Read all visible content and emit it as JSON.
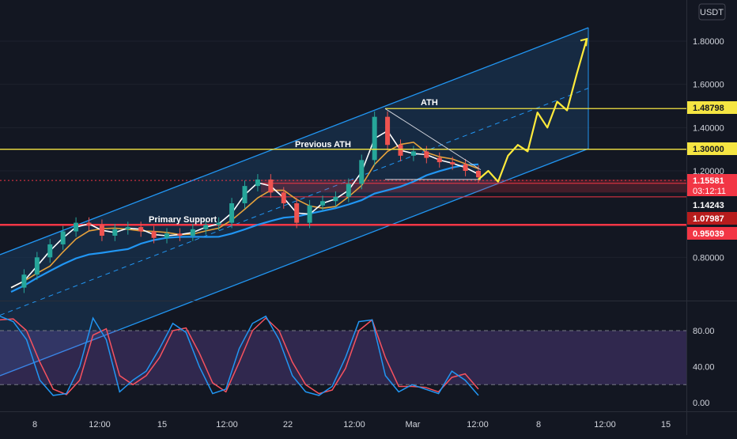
{
  "currency": "USDT",
  "price_axis": {
    "ticks": [
      {
        "value": 1.8,
        "label": "1.80000"
      },
      {
        "value": 1.6,
        "label": "1.60000"
      },
      {
        "value": 1.4,
        "label": "1.40000"
      },
      {
        "value": 1.2,
        "label": "1.20000"
      },
      {
        "value": 0.8,
        "label": "0.80000"
      }
    ]
  },
  "osc_axis": {
    "ticks": [
      {
        "value": 80,
        "label": "80.00"
      },
      {
        "value": 40,
        "label": "40.00"
      },
      {
        "value": 0,
        "label": "0.00"
      }
    ]
  },
  "time_axis": [
    "8",
    "12:00",
    "15",
    "12:00",
    "22",
    "12:00",
    "Mar",
    "12:00",
    "8",
    "12:00",
    "15"
  ],
  "price_badges": [
    {
      "value": 1.48798,
      "label": "1.48798",
      "bg": "#f5e542",
      "fg": "#131722"
    },
    {
      "value": 1.3,
      "label": "1.30000",
      "bg": "#f5e542",
      "fg": "#131722"
    },
    {
      "value": 1.15581,
      "label": "1.15581",
      "sub": "03:12:11",
      "bg": "#f23645",
      "fg": "#ffffff"
    },
    {
      "value": 1.14243,
      "label": "1.14243",
      "bg": "#131722",
      "fg": "#ffffff"
    },
    {
      "value": 1.07987,
      "label": "1.07987",
      "bg": "#b71c1c",
      "fg": "#ffffff"
    },
    {
      "value": 0.95039,
      "label": "0.95039",
      "bg": "#f23645",
      "fg": "#ffffff"
    }
  ],
  "annotations": {
    "ath": "ATH",
    "previous_ath": "Previous ATH",
    "primary_support": "Primary Support"
  },
  "colors": {
    "background": "#131722",
    "channel_line": "#2196f3",
    "channel_fill": "#1a3a5c",
    "level_line": "#f5e542",
    "projection": "#ffeb3b",
    "support_zone": "#f23645",
    "oscillator_band": "#7e57c2",
    "k_line": "#2196f3",
    "d_line": "#f7525f",
    "ma_fast": "#ffffff",
    "ma_mid": "#e6a23c",
    "ma_slow": "#2196f3"
  },
  "chart_data": {
    "type": "line",
    "title": "",
    "ylabel": "USDT",
    "ylim": [
      0.62,
      1.92
    ],
    "levels": {
      "ath": 1.48798,
      "previous_ath": 1.3,
      "current_price": 1.15581,
      "support_1": 1.14243,
      "support_2": 1.07987,
      "support_3": 0.95039
    },
    "x_labels": [
      "8",
      "12:00",
      "15",
      "12:00",
      "22",
      "12:00",
      "Mar",
      "12:00",
      "8",
      "12:00",
      "15"
    ],
    "price_close": [
      0.66,
      0.72,
      0.8,
      0.86,
      0.92,
      0.96,
      0.95,
      0.9,
      0.93,
      0.94,
      0.92,
      0.89,
      0.91,
      0.9,
      0.93,
      0.95,
      0.96,
      1.05,
      1.13,
      1.16,
      1.1,
      1.05,
      0.96,
      1.04,
      1.06,
      1.08,
      1.14,
      1.25,
      1.45,
      1.32,
      1.27,
      1.29,
      1.26,
      1.24,
      1.23,
      1.2,
      1.17
    ],
    "projection_path": [
      1.16,
      1.2,
      1.15,
      1.27,
      1.32,
      1.29,
      1.47,
      1.4,
      1.52,
      1.48,
      1.65,
      1.81
    ],
    "oscillator": {
      "ylim": [
        0,
        100
      ],
      "upper": 80,
      "lower": 20,
      "series": [
        {
          "name": "%K",
          "values": [
            96,
            90,
            70,
            25,
            8,
            10,
            40,
            94,
            70,
            12,
            25,
            35,
            60,
            88,
            78,
            40,
            10,
            15,
            60,
            88,
            96,
            70,
            30,
            12,
            8,
            18,
            50,
            90,
            92,
            30,
            12,
            20,
            15,
            10,
            35,
            25,
            8
          ]
        },
        {
          "name": "%D",
          "values": [
            92,
            93,
            80,
            45,
            15,
            9,
            25,
            75,
            82,
            30,
            20,
            30,
            50,
            80,
            83,
            55,
            22,
            12,
            45,
            80,
            94,
            80,
            45,
            20,
            10,
            14,
            38,
            80,
            92,
            50,
            18,
            18,
            17,
            12,
            28,
            32,
            15
          ]
        }
      ]
    }
  }
}
